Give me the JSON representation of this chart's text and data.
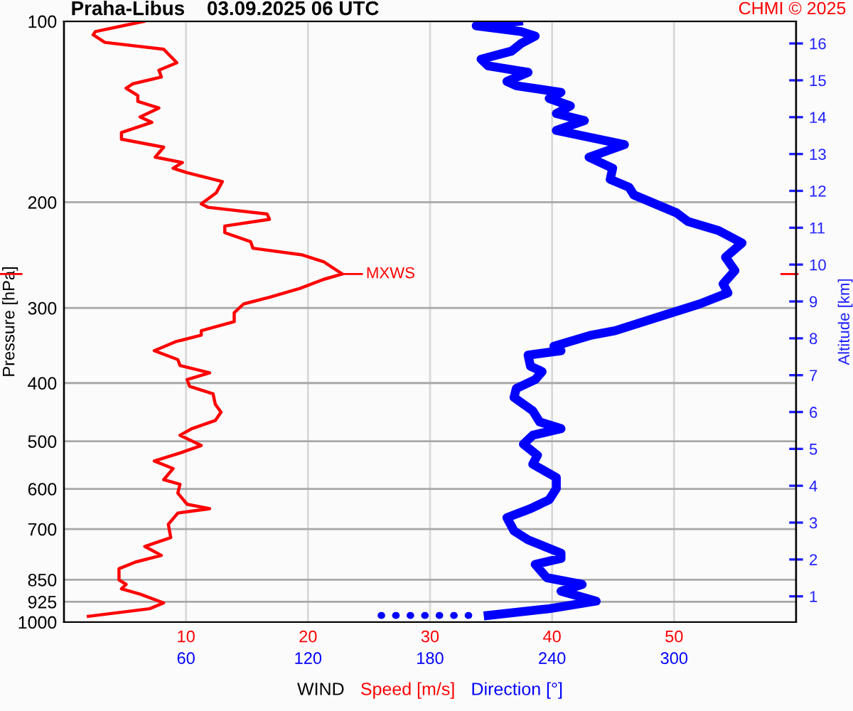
{
  "chart_data": {
    "type": "line",
    "title": "Praha-Libus    03.09.2025 06 UTC",
    "xlabel": "WIND",
    "ylabel": "Pressure [hPa]",
    "y2label": "Altitude [km]",
    "annotations": [
      "CHMI © 2025",
      {
        "text": "MXWS",
        "x": 22.81,
        "y": 263.4
      }
    ],
    "xlim": [
      0,
      60
    ],
    "x2lim": [
      0,
      360
    ],
    "xticks": [
      10,
      20,
      30,
      40,
      50
    ],
    "x2ticks": [
      60,
      120,
      180,
      240,
      300
    ],
    "ylim": [
      1000,
      100
    ],
    "yticks": [
      100,
      200,
      300,
      400,
      500,
      600,
      700,
      850,
      925,
      1000
    ],
    "log": "y",
    "y2lim": [
      0.3,
      16.6
    ],
    "y2ticks": [
      1,
      2,
      3,
      4,
      5,
      6,
      7,
      8,
      9,
      10,
      11,
      12,
      13,
      14,
      15,
      16
    ],
    "grid": true,
    "legend": "bottom",
    "marker": "none",
    "series": [
      {
        "name": "Speed [m/s]",
        "color": "#ff0000",
        "line_style": "solid",
        "x": [
          6.55,
          2.58,
          2.39,
          3.35,
          8.17,
          9.25,
          7.78,
          7.98,
          5.66,
          5.09,
          6.05,
          6.05,
          7.78,
          6.24,
          7.2,
          4.71,
          4.71,
          8.17,
          7.48,
          9.71,
          8.94,
          10.09,
          12.98,
          12.49,
          11.25,
          11.83,
          16.65,
          16.84,
          13.18,
          13.18,
          15.29,
          15.49,
          19.54,
          21.27,
          22.81,
          21.27,
          19.34,
          16.84,
          14.72,
          13.95,
          13.95,
          11.25,
          11.25,
          9.13,
          7.4,
          9.33,
          9.51,
          11.94,
          10.09,
          10.29,
          12.22,
          12.4,
          12.87,
          12.4,
          10.49,
          9.51,
          11.25,
          9.51,
          7.4,
          8.94,
          8.17,
          9.51,
          9.33,
          10.09,
          11.94,
          9.33,
          8.55,
          8.75,
          6.62,
          7.98,
          5.86,
          4.51,
          4.51,
          5.09,
          4.71,
          6.24,
          8.17,
          7.02,
          2.0
        ],
        "values": [
          100,
          104.0,
          105.3,
          108.4,
          111.3,
          117.2,
          120.6,
          123.8,
          127.0,
          129.2,
          132.9,
          135.9,
          139.4,
          144.3,
          147.3,
          153.1,
          157.1,
          162.0,
          168.3,
          171.8,
          175.6,
          178.6,
          184.8,
          192.8,
          201.3,
          204.0,
          209.3,
          213.6,
          219.1,
          224.8,
          232.6,
          238.6,
          244.8,
          251.2,
          263.4,
          268.9,
          278.3,
          288.0,
          295.4,
          305.6,
          316.2,
          327.3,
          332.9,
          341.5,
          353.4,
          365.6,
          373.9,
          384.7,
          394.7,
          405.0,
          416.9,
          433.7,
          447.2,
          461.8,
          476.3,
          488.6,
          508.2,
          522.9,
          539.3,
          555.2,
          579.4,
          589.5,
          609.8,
          636.6,
          647.4,
          658.4,
          687.3,
          723.3,
          748.2,
          774.3,
          794.3,
          814.9,
          850.6,
          865.5,
          880.2,
          898.4,
          929.1,
          949.8,
          978.1
        ]
      },
      {
        "name": "Direction [°]",
        "color": "#0000ff",
        "axis": "x2",
        "line_style": "solid",
        "x": [
          223.5,
          202.7,
          224.7,
          231.7,
          224.7,
          220.1,
          205.1,
          208.6,
          228.2,
          217.8,
          222.4,
          244.4,
          238.6,
          249.0,
          242.1,
          255.9,
          242.1,
          275.6,
          258.2,
          269.8,
          268.6,
          277.9,
          280.2,
          301.0,
          306.8,
          321.8,
          333.4,
          325.3,
          329.9,
          324.1,
          326.5,
          312.6,
          291.8,
          271.0,
          259.4,
          240.9,
          244.4,
          228.2,
          229.4,
          235.1,
          231.7,
          222.4,
          221.3,
          230.5,
          233.9,
          244.4,
          230.5,
          225.9,
          232.8,
          230.5,
          242.1,
          242.1,
          238.6,
          229.4,
          217.8,
          221.3,
          228.2,
          244.4,
          244.4,
          231.7,
          237.4,
          254.8,
          244.4,
          261.7,
          238.6,
          208.6
        ],
        "values": [
          100,
          101.7,
          104.0,
          105.8,
          108.9,
          112.1,
          115.6,
          118.6,
          121.6,
          125.9,
          128.0,
          131.3,
          134.4,
          138.3,
          142.4,
          146.3,
          151.9,
          160.4,
          168.3,
          175.6,
          183.2,
          188.9,
          194.5,
          208.2,
          215.4,
          222.9,
          233.8,
          247.0,
          260.0,
          273.6,
          283.1,
          295.4,
          310.9,
          327.3,
          332.9,
          347.3,
          353.4,
          359.4,
          375.0,
          382.8,
          394.7,
          408.5,
          422.7,
          444.9,
          464.2,
          476.3,
          488.6,
          505.6,
          527.6,
          546.0,
          574.5,
          599.5,
          625.5,
          647.4,
          669.9,
          705.0,
          729.4,
          767.8,
          783.4,
          801.4,
          843.4,
          865.5,
          887.9,
          922.6,
          949.8,
          974.8
        ]
      },
      {
        "color": "#0000ff",
        "axis": "x2",
        "line_style": "dotted",
        "x": [
          155.9,
          202.5
        ],
        "values": [
          974.8,
          974.8
        ]
      }
    ]
  }
}
